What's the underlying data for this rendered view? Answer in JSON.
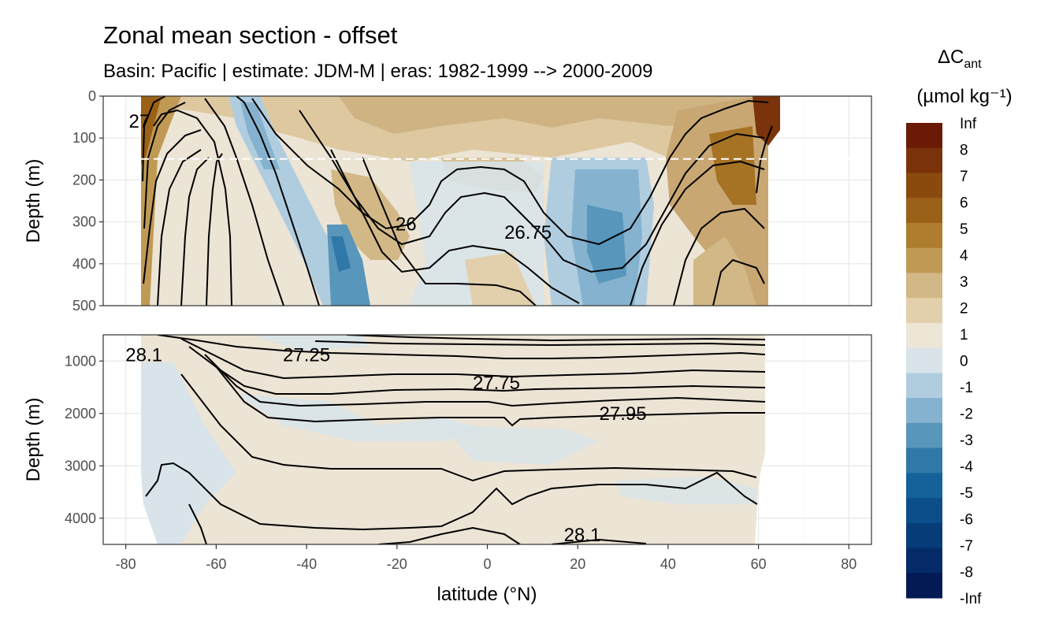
{
  "chart_data": {
    "type": "heatmap",
    "title": "Zonal mean section - offset",
    "subtitle": "Basin: Pacific | estimate: JDM-M | eras: 1982-1999 --> 2000-2009",
    "xlabel": "latitude (°N)",
    "ylabel": "Depth (m)",
    "xlim": [
      -85,
      85
    ],
    "x_ticks": [
      "-80",
      "-60",
      "-40",
      "-20",
      "0",
      "20",
      "40",
      "60",
      "80"
    ],
    "panels": [
      {
        "name": "upper",
        "ylim": [
          0,
          500
        ],
        "y_ticks": [
          "0",
          "100",
          "200",
          "300",
          "400",
          "500"
        ],
        "reference_depth": 150,
        "contour_labels": [
          {
            "text": "26",
            "lat": -18,
            "depth": 305
          },
          {
            "text": "26.75",
            "lat": 9,
            "depth": 325
          },
          {
            "text": "27",
            "lat": -77,
            "depth": 60
          }
        ]
      },
      {
        "name": "lower",
        "ylim": [
          500,
          4500
        ],
        "y_ticks": [
          "1000",
          "2000",
          "3000",
          "4000"
        ],
        "contour_labels": [
          {
            "text": "28.1",
            "lat": -76,
            "depth": 880
          },
          {
            "text": "27.25",
            "lat": -40,
            "depth": 880
          },
          {
            "text": "27.75",
            "lat": 2,
            "depth": 1420
          },
          {
            "text": "27.95",
            "lat": 30,
            "depth": 2000
          },
          {
            "text": "28.1",
            "lat": 21,
            "depth": 4320
          }
        ]
      }
    ],
    "legend": {
      "title_main": "ΔC",
      "title_sub": "ant",
      "unit": "(µmol kg⁻¹)",
      "position": "right",
      "labels": [
        "Inf",
        "8",
        "7",
        "6",
        "5",
        "4",
        "3",
        "2",
        "1",
        "0",
        "-1",
        "-2",
        "-3",
        "-4",
        "-5",
        "-6",
        "-7",
        "-8",
        "-Inf"
      ],
      "colors": [
        "#6b1a06",
        "#7a320a",
        "#8a4a0e",
        "#9b6118",
        "#ae7d2e",
        "#c09a55",
        "#d2b886",
        "#e2cfac",
        "#ede5d6",
        "#d8e4ea",
        "#b0cde0",
        "#85b2cf",
        "#5896bb",
        "#2f78a8",
        "#15629a",
        "#0b4e8a",
        "#063c78",
        "#042b68",
        "#031a55"
      ]
    },
    "grid": true
  }
}
